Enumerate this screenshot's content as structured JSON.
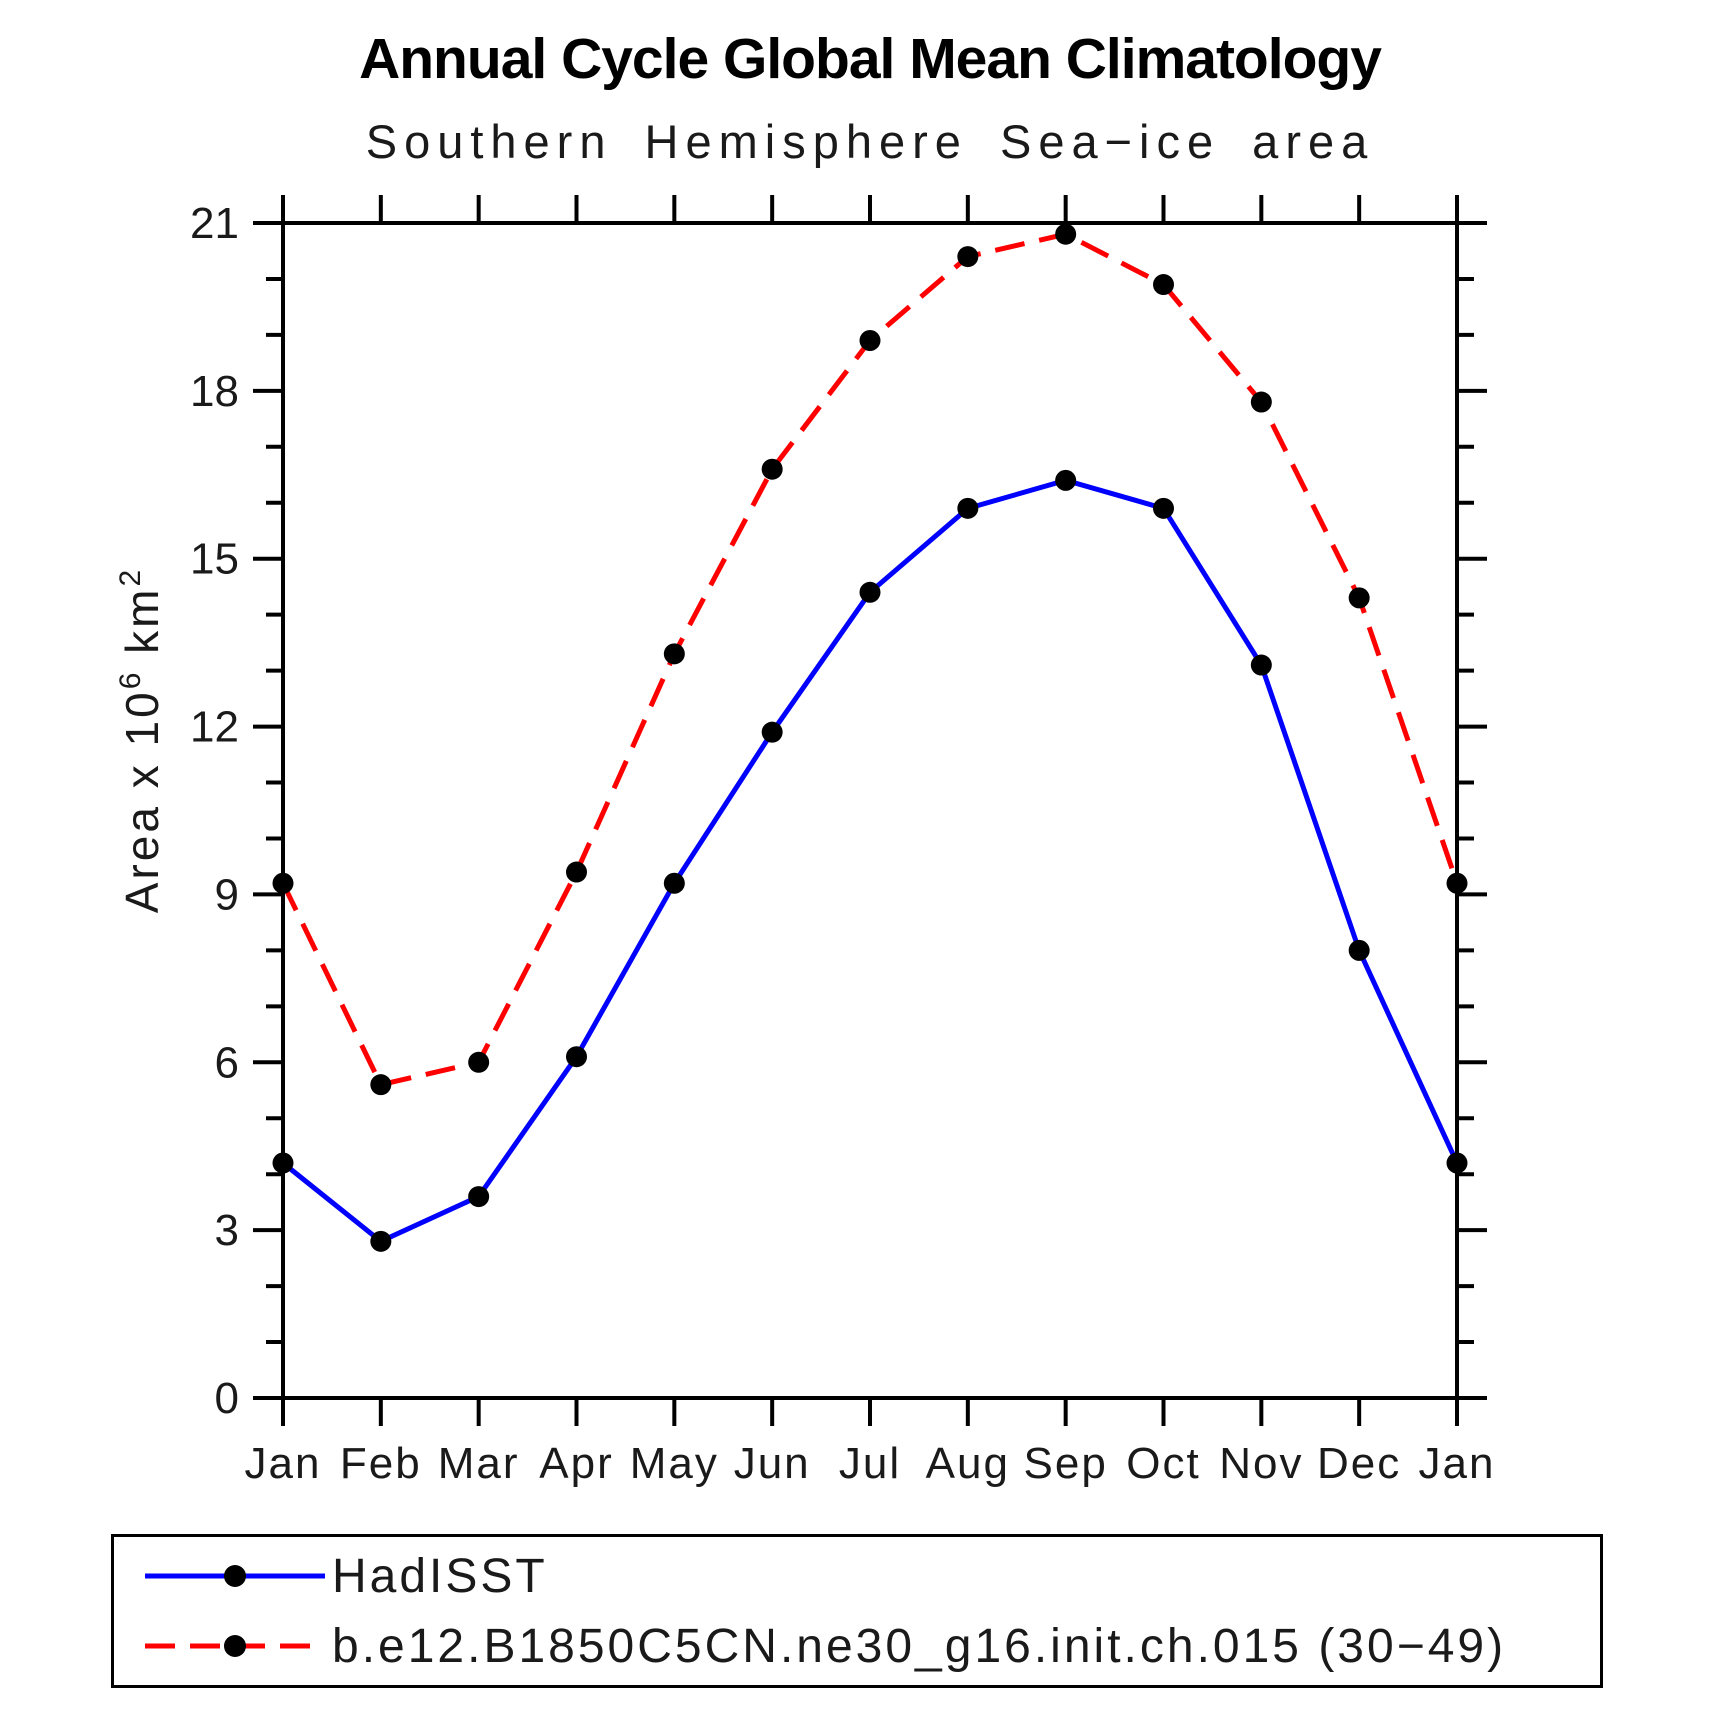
{
  "page": {
    "background": "#FFFFFF",
    "axis_color": "#000000",
    "text_color": "#000000"
  },
  "chart_data": {
    "type": "line",
    "title": "Annual Cycle Global Mean Climatology",
    "subtitle": "Southern Hemisphere Sea−ice area",
    "ylabel": "Area x 10⁶ km²",
    "ylabel_parts": [
      {
        "text": "Area x 10",
        "sup": false
      },
      {
        "text": "6",
        "sup": true
      },
      {
        "text": " km",
        "sup": false
      },
      {
        "text": "2",
        "sup": true
      }
    ],
    "categories": [
      "Jan",
      "Feb",
      "Mar",
      "Apr",
      "May",
      "Jun",
      "Jul",
      "Aug",
      "Sep",
      "Oct",
      "Nov",
      "Dec",
      "Jan"
    ],
    "ylim": [
      0,
      21
    ],
    "ytick_major_step": 3,
    "ytick_minor_step": 1,
    "ytick_labels": [
      "0",
      "3",
      "6",
      "9",
      "12",
      "15",
      "18",
      "21"
    ],
    "grid": false,
    "legend_position": "bottom",
    "marker": "filled-circle",
    "marker_color": "#000000",
    "series": [
      {
        "name": "HadISST",
        "color": "#0000FF",
        "line_style": "solid",
        "values": [
          4.2,
          2.8,
          3.6,
          6.1,
          9.2,
          11.9,
          14.4,
          15.9,
          16.4,
          15.9,
          13.1,
          8.0,
          4.2
        ]
      },
      {
        "name": "b.e12.B1850C5CN.ne30_g16.init.ch.015 (30−49)",
        "color": "#FF0000",
        "line_style": "dashed",
        "values": [
          9.2,
          5.6,
          6.0,
          9.4,
          13.3,
          16.6,
          18.9,
          20.4,
          20.8,
          19.9,
          17.8,
          14.3,
          9.2
        ]
      }
    ]
  }
}
